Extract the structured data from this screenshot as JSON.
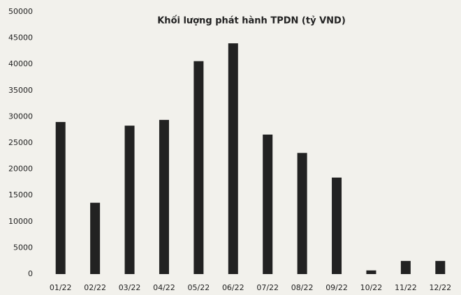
{
  "chart_data": {
    "type": "bar",
    "title": "Khối lượng phát hành TPDN (tỷ VND)",
    "categories": [
      "01/22",
      "02/22",
      "03/22",
      "04/22",
      "05/22",
      "06/22",
      "07/22",
      "08/22",
      "09/22",
      "10/22",
      "11/22",
      "12/22"
    ],
    "values": [
      29000,
      13600,
      28300,
      29400,
      40600,
      44000,
      26600,
      23100,
      18400,
      700,
      2500,
      2500
    ],
    "color": "#222222",
    "ylim": [
      0,
      50000
    ],
    "yticks": [
      0,
      5000,
      10000,
      15000,
      20000,
      25000,
      30000,
      35000,
      40000,
      45000,
      50000
    ],
    "grid": false
  }
}
